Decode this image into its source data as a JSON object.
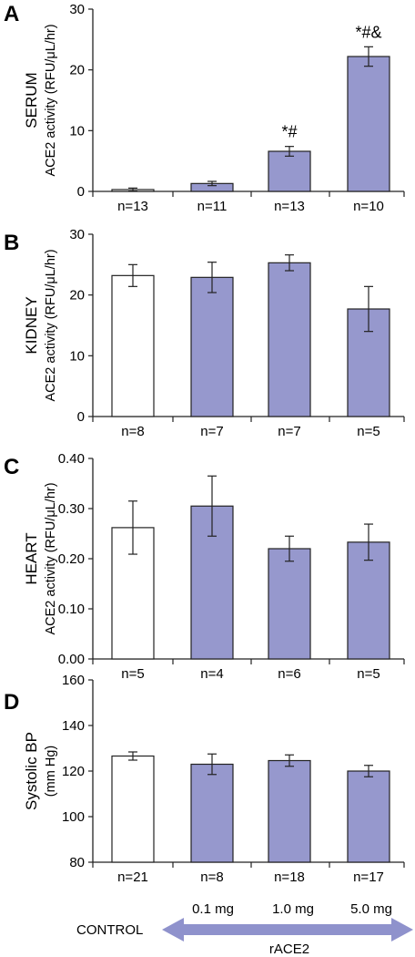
{
  "colors": {
    "treated": "#9698cd",
    "control": "#ffffff",
    "stroke": "#222222",
    "arrow": "#8f92cc"
  },
  "legend": {
    "control_label": "CONTROL",
    "doses": [
      "0.1 mg",
      "1.0 mg",
      "5.0 mg"
    ],
    "treatment_label": "rACE2"
  },
  "chart_data": [
    {
      "type": "bar",
      "panel": "A",
      "ylabel_primary": "SERUM",
      "ylabel": "ACE2 activity (RFU/μL/hr)",
      "ylim": [
        0,
        30
      ],
      "yticks": [
        0,
        10,
        20,
        30
      ],
      "ytick_labels": [
        "0",
        "10",
        "20",
        "30"
      ],
      "categories": [
        "n=13",
        "n=11",
        "n=13",
        "n=10"
      ],
      "values": [
        0.3,
        1.3,
        6.6,
        22.2
      ],
      "errors": [
        0.25,
        0.35,
        0.8,
        1.6
      ],
      "fills": [
        "control",
        "treated",
        "treated",
        "treated"
      ],
      "annotations": [
        "",
        "",
        "*#",
        "*#&"
      ]
    },
    {
      "type": "bar",
      "panel": "B",
      "ylabel_primary": "KIDNEY",
      "ylabel": "ACE2 activity (RFU/μL/hr)",
      "ylim": [
        0,
        30
      ],
      "yticks": [
        0,
        10,
        20,
        30
      ],
      "ytick_labels": [
        "0",
        "10",
        "20",
        "30"
      ],
      "categories": [
        "n=8",
        "n=7",
        "n=7",
        "n=5"
      ],
      "values": [
        23.2,
        22.9,
        25.3,
        17.7
      ],
      "errors": [
        1.8,
        2.5,
        1.3,
        3.7
      ],
      "fills": [
        "control",
        "treated",
        "treated",
        "treated"
      ],
      "annotations": [
        "",
        "",
        "",
        ""
      ]
    },
    {
      "type": "bar",
      "panel": "C",
      "ylabel_primary": "HEART",
      "ylabel": "ACE2 activity (RFU/μL/hr)",
      "ylim": [
        0,
        0.4
      ],
      "yticks": [
        0,
        0.1,
        0.2,
        0.3,
        0.4
      ],
      "ytick_labels": [
        "0.00",
        "0.10",
        "0.20",
        "0.30",
        "0.40"
      ],
      "categories": [
        "n=5",
        "n=4",
        "n=6",
        "n=5"
      ],
      "values": [
        0.262,
        0.305,
        0.22,
        0.233
      ],
      "errors": [
        0.053,
        0.06,
        0.025,
        0.036
      ],
      "fills": [
        "control",
        "treated",
        "treated",
        "treated"
      ],
      "annotations": [
        "",
        "",
        "",
        ""
      ]
    },
    {
      "type": "bar",
      "panel": "D",
      "ylabel_primary": "Systolic BP",
      "ylabel": "(mm Hg)",
      "ylim": [
        80,
        160
      ],
      "yticks": [
        80,
        100,
        120,
        140,
        160
      ],
      "ytick_labels": [
        "80",
        "100",
        "120",
        "140",
        "160"
      ],
      "categories": [
        "n=21",
        "n=8",
        "n=18",
        "n=17"
      ],
      "values": [
        126.6,
        123.0,
        124.6,
        120.0
      ],
      "errors": [
        1.8,
        4.5,
        2.5,
        2.5
      ],
      "fills": [
        "control",
        "treated",
        "treated",
        "treated"
      ],
      "annotations": [
        "",
        "",
        "",
        ""
      ]
    }
  ]
}
